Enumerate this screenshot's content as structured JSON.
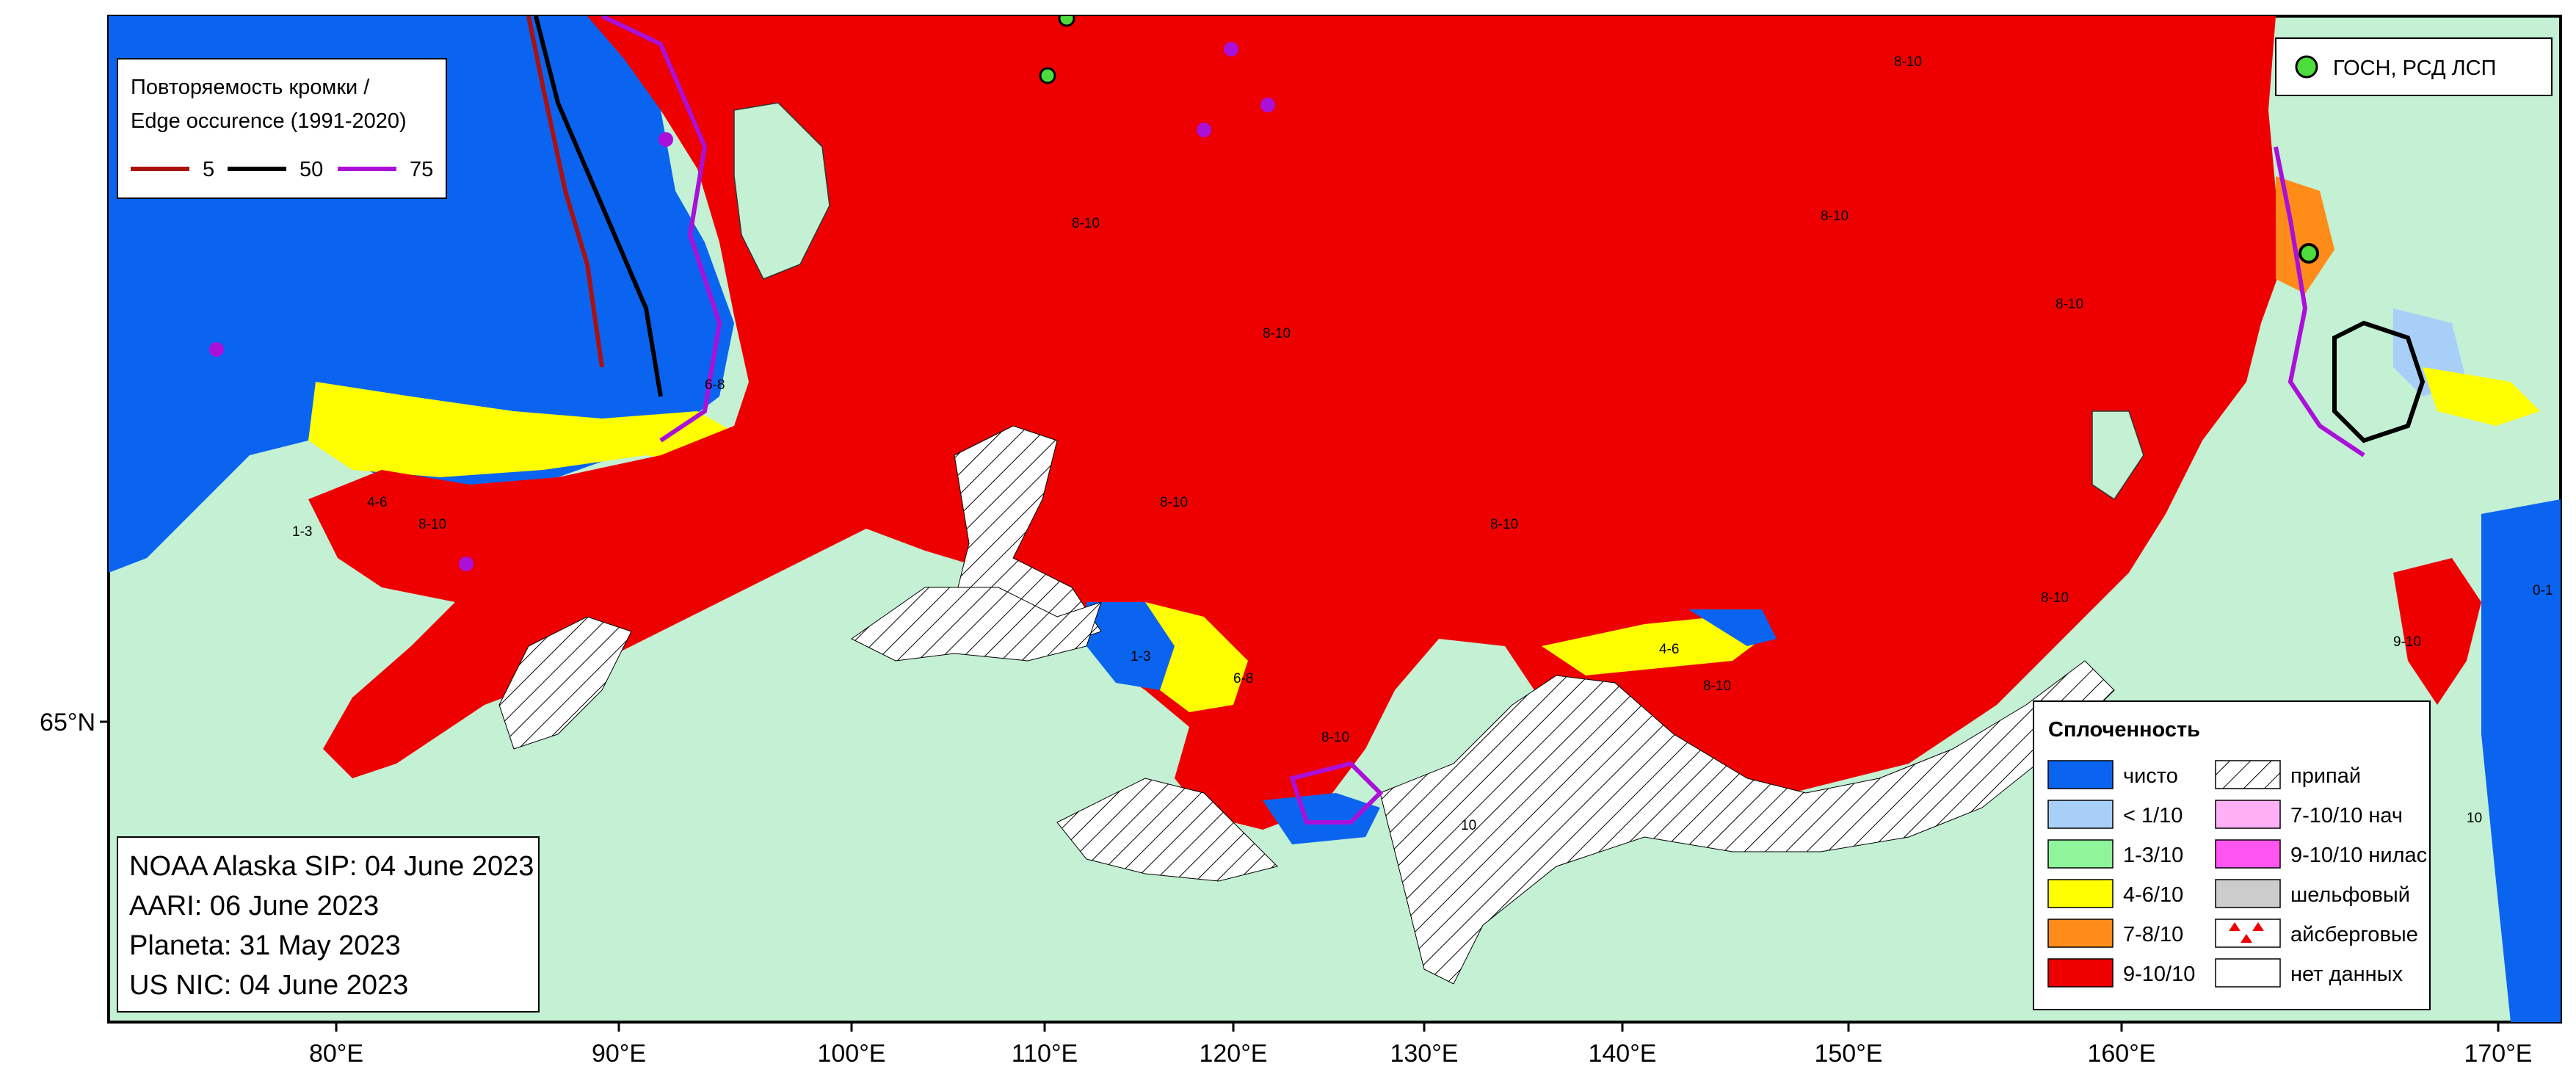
{
  "edge_legend": {
    "title_line1": "Повторяемость кромки /",
    "title_line2": "Edge occurence (1991-2020)",
    "items": [
      {
        "label": "5",
        "color": "#aa1111"
      },
      {
        "label": "50",
        "color": "#000000"
      },
      {
        "label": "75",
        "color": "#aa10d8"
      }
    ]
  },
  "stations_legend": {
    "label": "ГОСН, РСД ЛСП",
    "color": "#4cdd3c"
  },
  "info_box": {
    "lines": [
      "NOAA Alaska SIP: 04 June 2023",
      "AARI: 06 June 2023",
      "Planeta: 31 May 2023",
      "US NIC: 04 June 2023"
    ]
  },
  "concentration_legend": {
    "title": "Сплоченность",
    "left_items": [
      {
        "label": "чисто",
        "color": "#0b64f0"
      },
      {
        "label": "< 1/10",
        "color": "#a8cff7"
      },
      {
        "label": "1-3/10",
        "color": "#8ef59a"
      },
      {
        "label": "4-6/10",
        "color": "#ffff00"
      },
      {
        "label": "7-8/10",
        "color": "#ff8c19"
      },
      {
        "label": "9-10/10",
        "color": "#ee0000"
      }
    ],
    "right_items": [
      {
        "label": "припай",
        "icon": "hatch-icon"
      },
      {
        "label": "7-10/10 нач",
        "color": "#ffb0f5"
      },
      {
        "label": "9-10/10 нилас",
        "color": "#ff55f0"
      },
      {
        "label": "шельфовый",
        "color": "#cccccc"
      },
      {
        "label": "айсберговые",
        "icon": "triangle-icon"
      },
      {
        "label": "нет данных",
        "color": "#ffffff"
      }
    ]
  },
  "axis": {
    "lon_ticks": [
      "80°E",
      "90°E",
      "100°E",
      "110°E",
      "120°E",
      "130°E",
      "140°E",
      "150°E",
      "160°E",
      "170°E"
    ],
    "lat_ticks": [
      "65°N"
    ]
  },
  "region_labels": {
    "conc_8_10": "8-10",
    "conc_4_6": "4-6",
    "conc_1_3": "1-3",
    "conc_6_8": "6-8",
    "conc_0_1": "0-1",
    "conc_10": "10",
    "conc_9_10": "9-10"
  }
}
